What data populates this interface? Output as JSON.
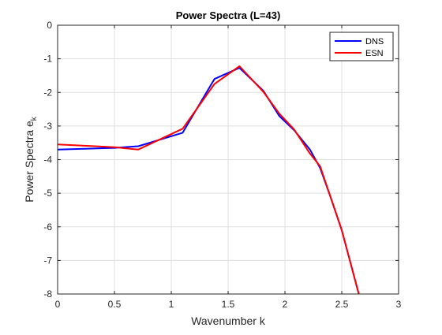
{
  "chart_data": {
    "type": "line",
    "title": "Power Spectra (L=43)",
    "xlabel": "Wavenumber k",
    "ylabel_main": "Power Spectra e",
    "ylabel_sub": "k",
    "xlim": [
      0,
      3
    ],
    "ylim": [
      -8,
      0
    ],
    "xticks": [
      0,
      0.5,
      1,
      1.5,
      2,
      2.5,
      3
    ],
    "xtick_labels": [
      "0",
      "0.5",
      "1",
      "1.5",
      "2",
      "2.5",
      "3"
    ],
    "yticks": [
      0,
      -1,
      -2,
      -3,
      -4,
      -5,
      -6,
      -7,
      -8
    ],
    "ytick_labels": [
      "0",
      "-1",
      "-2",
      "-3",
      "-4",
      "-5",
      "-6",
      "-7",
      "-8"
    ],
    "grid": true,
    "legend_position": "top-right",
    "series": [
      {
        "name": "DNS",
        "color": "#0000ff",
        "x": [
          0,
          0.5,
          0.71,
          1.1,
          1.38,
          1.6,
          1.81,
          1.95,
          2.08,
          2.22,
          2.31,
          2.4,
          2.5,
          2.65
        ],
        "y": [
          -3.7,
          -3.65,
          -3.6,
          -3.2,
          -1.6,
          -1.27,
          -1.95,
          -2.7,
          -3.12,
          -3.7,
          -4.25,
          -5.1,
          -6.1,
          -8.0
        ]
      },
      {
        "name": "ESN",
        "color": "#ff0000",
        "x": [
          0,
          0.5,
          0.71,
          1.1,
          1.38,
          1.6,
          1.81,
          1.95,
          2.08,
          2.22,
          2.31,
          2.4,
          2.5,
          2.65
        ],
        "y": [
          -3.55,
          -3.63,
          -3.7,
          -3.08,
          -1.75,
          -1.22,
          -1.98,
          -2.63,
          -3.1,
          -3.82,
          -4.2,
          -5.1,
          -6.1,
          -8.0
        ]
      }
    ]
  }
}
